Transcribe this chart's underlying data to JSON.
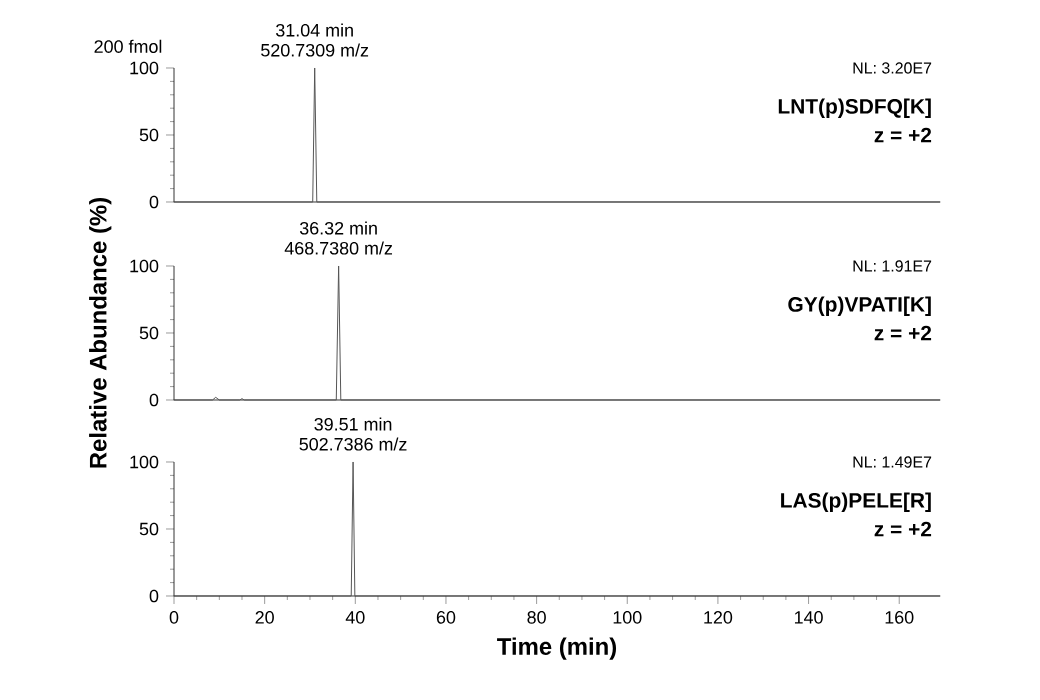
{
  "chart_data": [
    {
      "type": "line",
      "title": "200 fmol",
      "x": [
        0,
        30.6,
        31.04,
        31.5,
        169
      ],
      "series": [
        {
          "color": "#555555",
          "values": [
            0,
            0,
            100,
            0,
            0
          ]
        }
      ],
      "xlim": [
        0,
        169
      ],
      "ylim": [
        0,
        100
      ],
      "yticks": [
        0,
        50,
        100
      ],
      "tick_labels": "y",
      "line_style": "solid",
      "annotations": [
        {
          "text": "31.04 min",
          "x": 31.04,
          "y": 100
        },
        {
          "text": "520.7309 m/z",
          "x": 31.04,
          "y": 100
        },
        "NL: 3.20E7",
        "LNT(p)SDFQ[K]",
        "z = +2"
      ]
    },
    {
      "type": "line",
      "ylabel": "Relative Abundance (%)",
      "x": [
        0,
        8.5,
        9.2,
        10,
        14.5,
        15,
        15.5,
        35.8,
        36.32,
        36.8,
        169
      ],
      "series": [
        {
          "color": "#555555",
          "values": [
            0,
            0,
            2,
            0,
            0,
            1,
            0,
            0,
            100,
            0,
            0
          ]
        }
      ],
      "xlim": [
        0,
        169
      ],
      "ylim": [
        0,
        100
      ],
      "yticks": [
        0,
        50,
        100
      ],
      "tick_labels": "y",
      "line_style": "solid",
      "annotations": [
        {
          "text": "36.32 min",
          "x": 36.32,
          "y": 100
        },
        {
          "text": "468.7380 m/z",
          "x": 36.32,
          "y": 100
        },
        "NL: 1.91E7",
        "GY(p)VPATI[K]",
        "z = +2"
      ]
    },
    {
      "type": "line",
      "xlabel": "Time (min)",
      "x": [
        0,
        39.1,
        39.51,
        39.9,
        169
      ],
      "series": [
        {
          "color": "#555555",
          "values": [
            0,
            0,
            100,
            0,
            0
          ]
        }
      ],
      "xlim": [
        0,
        169
      ],
      "ylim": [
        0,
        100
      ],
      "xticks": [
        0,
        20,
        40,
        60,
        80,
        100,
        120,
        140,
        160
      ],
      "yticks": [
        0,
        50,
        100
      ],
      "line_style": "solid",
      "annotations": [
        {
          "text": "39.51 min",
          "x": 39.51,
          "y": 100
        },
        {
          "text": "502.7386 m/z",
          "x": 39.51,
          "y": 100
        },
        "NL: 1.49E7",
        "LAS(p)PELE[R]",
        "z = +2"
      ]
    }
  ]
}
